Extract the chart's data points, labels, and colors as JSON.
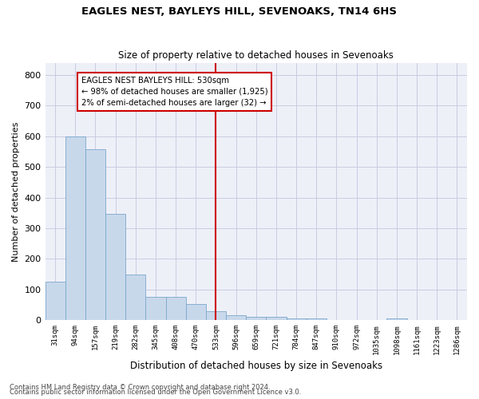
{
  "title": "EAGLES NEST, BAYLEYS HILL, SEVENOAKS, TN14 6HS",
  "subtitle": "Size of property relative to detached houses in Sevenoaks",
  "xlabel": "Distribution of detached houses by size in Sevenoaks",
  "ylabel": "Number of detached properties",
  "categories": [
    "31sqm",
    "94sqm",
    "157sqm",
    "219sqm",
    "282sqm",
    "345sqm",
    "408sqm",
    "470sqm",
    "533sqm",
    "596sqm",
    "659sqm",
    "721sqm",
    "784sqm",
    "847sqm",
    "910sqm",
    "972sqm",
    "1035sqm",
    "1098sqm",
    "1161sqm",
    "1223sqm",
    "1286sqm"
  ],
  "values": [
    125,
    600,
    557,
    347,
    148,
    77,
    77,
    52,
    30,
    15,
    12,
    12,
    5,
    5,
    0,
    0,
    0,
    5,
    0,
    0,
    0
  ],
  "bar_color": "#c8d8eb",
  "bar_edge_color": "#7aa8cc",
  "vline_x": 8,
  "vline_color": "#cc0000",
  "annotation_text": "EAGLES NEST BAYLEYS HILL: 530sqm\n← 98% of detached houses are smaller (1,925)\n2% of semi-detached houses are larger (32) →",
  "annotation_box_color": "#cc0000",
  "ylim": [
    0,
    840
  ],
  "yticks": [
    0,
    100,
    200,
    300,
    400,
    500,
    600,
    700,
    800
  ],
  "grid_color": "#c8cce0",
  "plot_bg_color": "#eef0f8",
  "footer_line1": "Contains HM Land Registry data © Crown copyright and database right 2024.",
  "footer_line2": "Contains public sector information licensed under the Open Government Licence v3.0."
}
